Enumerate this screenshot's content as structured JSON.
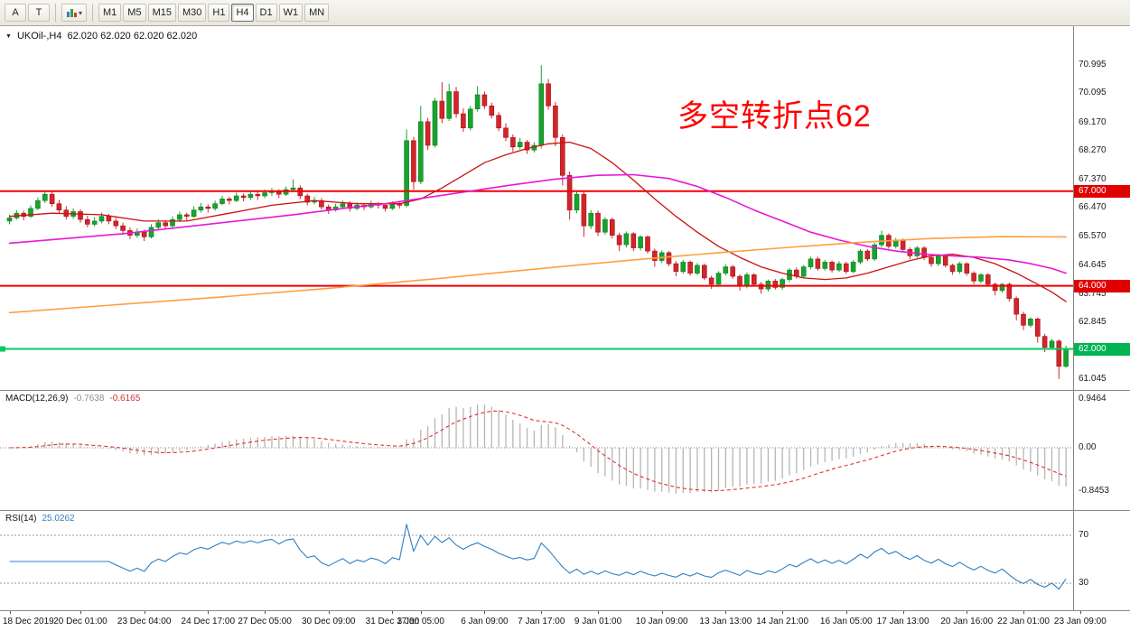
{
  "toolbar": {
    "tools": [
      {
        "label": "A",
        "name": "arrow-tool-button"
      },
      {
        "label": "T",
        "name": "text-tool-button"
      }
    ],
    "timeframes": [
      "M1",
      "M5",
      "M15",
      "M30",
      "H1",
      "H4",
      "D1",
      "W1",
      "MN"
    ],
    "active_timeframe": "H4"
  },
  "chart": {
    "symbol_title": "UKOil-,H4",
    "ohlc": "62.020 62.020 62.020 62.020",
    "annotation": "多空转折点62"
  },
  "indicators": {
    "macd": {
      "label": "MACD(12,26,9)",
      "main": "-0.7638",
      "signal": "-0.6165"
    },
    "rsi": {
      "label": "RSI(14)",
      "value": "25.0262"
    }
  },
  "chart_data": {
    "type": "candlestick",
    "symbol": "UKOil-",
    "period": "H4",
    "colors": {
      "up": "#18a32e",
      "up_border": "#0e7f20",
      "down": "#d2252b",
      "down_border": "#a31418",
      "macd_hist": "#b6b6b6",
      "macd_signal": "#e03030",
      "rsi": "#2f7fc1"
    },
    "price_ticks": [
      70.995,
      70.095,
      69.17,
      68.27,
      67.37,
      66.47,
      65.57,
      64.645,
      63.745,
      62.845,
      61.045
    ],
    "hlines": [
      {
        "price": 67.0,
        "label": "67.000",
        "color": "#f00000",
        "badge": "#e00000"
      },
      {
        "price": 64.0,
        "label": "64.000",
        "color": "#f00000",
        "badge": "#e00000"
      },
      {
        "price": 62.0,
        "label": "62.000",
        "color": "#00cc5e",
        "badge": "#00b454"
      }
    ],
    "moving_averages": [
      {
        "name": "ma-red-line",
        "color": "#cc1111",
        "width": 1.3,
        "points": [
          [
            0,
            66.2
          ],
          [
            6,
            66.3
          ],
          [
            13,
            66.25
          ],
          [
            19,
            66.05
          ],
          [
            25,
            66.05
          ],
          [
            31,
            66.3
          ],
          [
            37,
            66.55
          ],
          [
            43,
            66.7
          ],
          [
            49,
            66.6
          ],
          [
            55,
            66.6
          ],
          [
            58,
            66.75
          ],
          [
            61,
            67.1
          ],
          [
            64,
            67.5
          ],
          [
            67,
            67.9
          ],
          [
            70,
            68.15
          ],
          [
            73,
            68.35
          ],
          [
            76,
            68.5
          ],
          [
            79,
            68.55
          ],
          [
            82,
            68.35
          ],
          [
            85,
            67.9
          ],
          [
            88,
            67.35
          ],
          [
            91,
            66.75
          ],
          [
            94,
            66.2
          ],
          [
            97,
            65.7
          ],
          [
            100,
            65.25
          ],
          [
            103,
            64.9
          ],
          [
            106,
            64.6
          ],
          [
            109,
            64.4
          ],
          [
            112,
            64.25
          ],
          [
            115,
            64.2
          ],
          [
            118,
            64.25
          ],
          [
            121,
            64.4
          ],
          [
            124,
            64.6
          ],
          [
            127,
            64.8
          ],
          [
            130,
            64.95
          ],
          [
            133,
            65.0
          ],
          [
            136,
            64.9
          ],
          [
            139,
            64.7
          ],
          [
            142,
            64.4
          ],
          [
            145,
            64.05
          ],
          [
            147,
            63.8
          ],
          [
            149,
            63.5
          ]
        ]
      },
      {
        "name": "ma-magenta-line",
        "color": "#e519d6",
        "width": 1.6,
        "points": [
          [
            0,
            65.35
          ],
          [
            8,
            65.5
          ],
          [
            16,
            65.65
          ],
          [
            24,
            65.85
          ],
          [
            32,
            66.05
          ],
          [
            40,
            66.25
          ],
          [
            47,
            66.45
          ],
          [
            53,
            66.6
          ],
          [
            59,
            66.8
          ],
          [
            65,
            67.0
          ],
          [
            71,
            67.2
          ],
          [
            77,
            67.38
          ],
          [
            83,
            67.5
          ],
          [
            88,
            67.52
          ],
          [
            93,
            67.4
          ],
          [
            97,
            67.15
          ],
          [
            101,
            66.8
          ],
          [
            105,
            66.4
          ],
          [
            109,
            66.05
          ],
          [
            113,
            65.7
          ],
          [
            117,
            65.45
          ],
          [
            121,
            65.25
          ],
          [
            125,
            65.1
          ],
          [
            129,
            65.0
          ],
          [
            133,
            64.95
          ],
          [
            137,
            64.9
          ],
          [
            141,
            64.82
          ],
          [
            144,
            64.7
          ],
          [
            147,
            64.55
          ],
          [
            149,
            64.4
          ]
        ]
      },
      {
        "name": "ma-orange-line",
        "color": "#ff9f40",
        "width": 1.6,
        "points": [
          [
            0,
            63.15
          ],
          [
            15,
            63.4
          ],
          [
            30,
            63.65
          ],
          [
            45,
            63.92
          ],
          [
            60,
            64.22
          ],
          [
            75,
            64.55
          ],
          [
            88,
            64.82
          ],
          [
            100,
            65.05
          ],
          [
            110,
            65.22
          ],
          [
            120,
            65.38
          ],
          [
            130,
            65.5
          ],
          [
            140,
            65.56
          ],
          [
            149,
            65.55
          ]
        ]
      }
    ],
    "macd": {
      "params": [
        12,
        26,
        9
      ],
      "axis": [
        0.9464,
        0,
        -0.8453
      ]
    },
    "rsi": {
      "period": 14,
      "levels": [
        70,
        30
      ]
    },
    "time_labels": [
      {
        "idx": 0,
        "label": "18 Dec 2019"
      },
      {
        "idx": 10,
        "label": "20 Dec 01:00"
      },
      {
        "idx": 19,
        "label": "23 Dec 04:00"
      },
      {
        "idx": 28,
        "label": "24 Dec 17:00"
      },
      {
        "idx": 36,
        "label": "27 Dec 05:00"
      },
      {
        "idx": 45,
        "label": "30 Dec 09:00"
      },
      {
        "idx": 54,
        "label": "31 Dec 17:00"
      },
      {
        "idx": 58,
        "label": "3 Jan 05:00"
      },
      {
        "idx": 67,
        "label": "6 Jan 09:00"
      },
      {
        "idx": 75,
        "label": "7 Jan 17:00"
      },
      {
        "idx": 83,
        "label": "9 Jan 01:00"
      },
      {
        "idx": 92,
        "label": "10 Jan 09:00"
      },
      {
        "idx": 101,
        "label": "13 Jan 13:00"
      },
      {
        "idx": 109,
        "label": "14 Jan 21:00"
      },
      {
        "idx": 118,
        "label": "16 Jan 05:00"
      },
      {
        "idx": 126,
        "label": "17 Jan 13:00"
      },
      {
        "idx": 135,
        "label": "20 Jan 16:00"
      },
      {
        "idx": 143,
        "label": "22 Jan 01:00"
      },
      {
        "idx": 151,
        "label": "23 Jan 09:00"
      }
    ],
    "candles_ohlc": [
      [
        66.05,
        66.25,
        65.95,
        66.15
      ],
      [
        66.15,
        66.4,
        66.1,
        66.3
      ],
      [
        66.3,
        66.38,
        66.08,
        66.2
      ],
      [
        66.2,
        66.55,
        66.15,
        66.45
      ],
      [
        66.45,
        66.8,
        66.4,
        66.7
      ],
      [
        66.7,
        67.02,
        66.62,
        66.9
      ],
      [
        66.9,
        66.98,
        66.5,
        66.6
      ],
      [
        66.6,
        66.72,
        66.3,
        66.4
      ],
      [
        66.4,
        66.52,
        66.1,
        66.2
      ],
      [
        66.2,
        66.45,
        66.12,
        66.35
      ],
      [
        66.35,
        66.42,
        66.0,
        66.1
      ],
      [
        66.1,
        66.22,
        65.85,
        65.95
      ],
      [
        65.95,
        66.18,
        65.88,
        66.05
      ],
      [
        66.05,
        66.32,
        65.98,
        66.2
      ],
      [
        66.2,
        66.28,
        65.95,
        66.05
      ],
      [
        66.05,
        66.15,
        65.8,
        65.9
      ],
      [
        65.9,
        66.0,
        65.62,
        65.75
      ],
      [
        65.75,
        65.85,
        65.48,
        65.6
      ],
      [
        65.6,
        65.82,
        65.52,
        65.7
      ],
      [
        65.7,
        65.78,
        65.42,
        65.55
      ],
      [
        65.55,
        65.95,
        65.5,
        65.85
      ],
      [
        65.85,
        66.1,
        65.78,
        66.0
      ],
      [
        66.0,
        66.08,
        65.8,
        65.9
      ],
      [
        65.9,
        66.2,
        65.85,
        66.1
      ],
      [
        66.1,
        66.35,
        66.02,
        66.25
      ],
      [
        66.25,
        66.32,
        66.08,
        66.2
      ],
      [
        66.2,
        66.52,
        66.15,
        66.4
      ],
      [
        66.4,
        66.62,
        66.32,
        66.5
      ],
      [
        66.5,
        66.58,
        66.32,
        66.45
      ],
      [
        66.45,
        66.7,
        66.38,
        66.6
      ],
      [
        66.6,
        66.85,
        66.55,
        66.75
      ],
      [
        66.75,
        66.82,
        66.58,
        66.7
      ],
      [
        66.7,
        66.95,
        66.65,
        66.85
      ],
      [
        66.85,
        66.92,
        66.68,
        66.8
      ],
      [
        66.8,
        67.0,
        66.72,
        66.9
      ],
      [
        66.9,
        66.98,
        66.72,
        66.85
      ],
      [
        66.85,
        67.05,
        66.78,
        66.95
      ],
      [
        66.95,
        67.1,
        66.85,
        67.0
      ],
      [
        67.0,
        67.06,
        66.78,
        66.9
      ],
      [
        66.9,
        67.15,
        66.85,
        67.05
      ],
      [
        67.05,
        67.37,
        67.0,
        67.1
      ],
      [
        67.1,
        67.18,
        66.75,
        66.85
      ],
      [
        66.85,
        66.92,
        66.55,
        66.65
      ],
      [
        66.65,
        66.82,
        66.58,
        66.7
      ],
      [
        66.7,
        66.78,
        66.42,
        66.5
      ],
      [
        66.5,
        66.58,
        66.28,
        66.4
      ],
      [
        66.4,
        66.6,
        66.35,
        66.5
      ],
      [
        66.5,
        66.7,
        66.45,
        66.6
      ],
      [
        66.6,
        66.68,
        66.35,
        66.45
      ],
      [
        66.45,
        66.65,
        66.4,
        66.55
      ],
      [
        66.55,
        66.62,
        66.4,
        66.5
      ],
      [
        66.5,
        66.7,
        66.45,
        66.6
      ],
      [
        66.6,
        66.66,
        66.45,
        66.55
      ],
      [
        66.55,
        66.62,
        66.35,
        66.45
      ],
      [
        66.45,
        66.68,
        66.4,
        66.6
      ],
      [
        66.6,
        66.66,
        66.45,
        66.55
      ],
      [
        66.55,
        68.95,
        66.48,
        68.6
      ],
      [
        68.6,
        68.72,
        67.05,
        67.3
      ],
      [
        67.3,
        69.7,
        67.22,
        69.2
      ],
      [
        69.2,
        69.32,
        68.3,
        68.45
      ],
      [
        68.45,
        69.95,
        68.38,
        69.85
      ],
      [
        69.85,
        70.45,
        69.15,
        69.3
      ],
      [
        69.3,
        70.4,
        69.22,
        70.15
      ],
      [
        70.15,
        70.3,
        69.32,
        69.45
      ],
      [
        69.45,
        69.62,
        68.88,
        69.0
      ],
      [
        69.0,
        69.7,
        68.92,
        69.6
      ],
      [
        69.6,
        70.32,
        69.52,
        70.05
      ],
      [
        70.05,
        70.15,
        69.6,
        69.7
      ],
      [
        69.7,
        69.8,
        69.3,
        69.4
      ],
      [
        69.4,
        69.5,
        68.9,
        69.0
      ],
      [
        69.0,
        69.15,
        68.58,
        68.7
      ],
      [
        68.7,
        68.8,
        68.25,
        68.4
      ],
      [
        68.4,
        68.68,
        68.32,
        68.55
      ],
      [
        68.55,
        68.62,
        68.18,
        68.3
      ],
      [
        68.3,
        68.55,
        68.22,
        68.45
      ],
      [
        68.45,
        70.99,
        68.35,
        70.4
      ],
      [
        70.4,
        70.55,
        69.58,
        69.7
      ],
      [
        69.7,
        69.82,
        68.42,
        68.7
      ],
      [
        68.7,
        68.8,
        67.18,
        67.5
      ],
      [
        67.5,
        67.62,
        66.1,
        66.4
      ],
      [
        66.4,
        67.0,
        66.3,
        66.9
      ],
      [
        66.9,
        66.98,
        65.55,
        65.9
      ],
      [
        65.9,
        66.4,
        65.8,
        66.3
      ],
      [
        66.3,
        66.38,
        65.58,
        65.7
      ],
      [
        65.7,
        66.18,
        65.62,
        66.1
      ],
      [
        66.1,
        66.16,
        65.5,
        65.6
      ],
      [
        65.6,
        65.68,
        65.1,
        65.3
      ],
      [
        65.3,
        65.72,
        65.22,
        65.65
      ],
      [
        65.65,
        65.7,
        65.1,
        65.2
      ],
      [
        65.2,
        65.6,
        65.12,
        65.55
      ],
      [
        65.55,
        65.6,
        65.02,
        65.1
      ],
      [
        65.1,
        65.18,
        64.6,
        64.8
      ],
      [
        64.8,
        65.12,
        64.72,
        65.05
      ],
      [
        65.05,
        65.1,
        64.62,
        64.7
      ],
      [
        64.7,
        64.78,
        64.3,
        64.45
      ],
      [
        64.45,
        64.82,
        64.38,
        64.75
      ],
      [
        64.75,
        64.8,
        64.32,
        64.4
      ],
      [
        64.4,
        64.72,
        64.34,
        64.65
      ],
      [
        64.65,
        64.7,
        64.18,
        64.25
      ],
      [
        64.25,
        64.32,
        63.9,
        64.05
      ],
      [
        64.05,
        64.46,
        63.98,
        64.4
      ],
      [
        64.4,
        64.68,
        64.32,
        64.6
      ],
      [
        64.6,
        64.66,
        64.22,
        64.3
      ],
      [
        64.3,
        64.36,
        63.85,
        64.0
      ],
      [
        64.0,
        64.42,
        63.92,
        64.35
      ],
      [
        64.35,
        64.4,
        63.98,
        64.05
      ],
      [
        64.05,
        64.12,
        63.75,
        63.9
      ],
      [
        63.9,
        64.2,
        63.82,
        64.15
      ],
      [
        64.15,
        64.22,
        63.88,
        63.95
      ],
      [
        63.95,
        64.26,
        63.88,
        64.2
      ],
      [
        64.2,
        64.56,
        64.12,
        64.5
      ],
      [
        64.5,
        64.58,
        64.22,
        64.3
      ],
      [
        64.3,
        64.66,
        64.24,
        64.6
      ],
      [
        64.6,
        64.92,
        64.52,
        64.85
      ],
      [
        64.85,
        64.92,
        64.48,
        64.55
      ],
      [
        64.55,
        64.82,
        64.48,
        64.75
      ],
      [
        64.75,
        64.8,
        64.42,
        64.5
      ],
      [
        64.5,
        64.78,
        64.44,
        64.7
      ],
      [
        64.7,
        64.76,
        64.38,
        64.45
      ],
      [
        64.45,
        64.82,
        64.4,
        64.75
      ],
      [
        64.75,
        65.16,
        64.68,
        65.1
      ],
      [
        65.1,
        65.16,
        64.78,
        64.85
      ],
      [
        64.85,
        65.36,
        64.78,
        65.3
      ],
      [
        65.3,
        65.75,
        65.22,
        65.6
      ],
      [
        65.6,
        65.66,
        65.18,
        65.25
      ],
      [
        65.25,
        65.52,
        65.18,
        65.45
      ],
      [
        65.45,
        65.5,
        65.08,
        65.15
      ],
      [
        65.15,
        65.22,
        64.85,
        64.95
      ],
      [
        64.95,
        65.26,
        64.88,
        65.2
      ],
      [
        65.2,
        65.26,
        64.82,
        64.9
      ],
      [
        64.9,
        64.96,
        64.6,
        64.7
      ],
      [
        64.7,
        65.0,
        64.62,
        64.95
      ],
      [
        64.95,
        65.0,
        64.58,
        64.65
      ],
      [
        64.65,
        64.7,
        64.35,
        64.45
      ],
      [
        64.45,
        64.76,
        64.38,
        64.7
      ],
      [
        64.7,
        64.74,
        64.32,
        64.4
      ],
      [
        64.4,
        64.46,
        64.05,
        64.15
      ],
      [
        64.15,
        64.4,
        64.08,
        64.35
      ],
      [
        64.35,
        64.4,
        63.98,
        64.05
      ],
      [
        64.05,
        64.1,
        63.7,
        63.85
      ],
      [
        63.85,
        64.08,
        63.78,
        64.05
      ],
      [
        64.05,
        64.1,
        63.5,
        63.6
      ],
      [
        63.6,
        63.66,
        62.9,
        63.1
      ],
      [
        63.1,
        63.18,
        62.6,
        62.75
      ],
      [
        62.75,
        63.0,
        62.68,
        62.95
      ],
      [
        62.95,
        63.0,
        62.2,
        62.4
      ],
      [
        62.4,
        62.48,
        61.9,
        62.05
      ],
      [
        62.05,
        62.32,
        61.98,
        62.25
      ],
      [
        62.25,
        62.3,
        61.05,
        61.45
      ],
      [
        61.45,
        62.1,
        61.4,
        62.02
      ]
    ]
  }
}
